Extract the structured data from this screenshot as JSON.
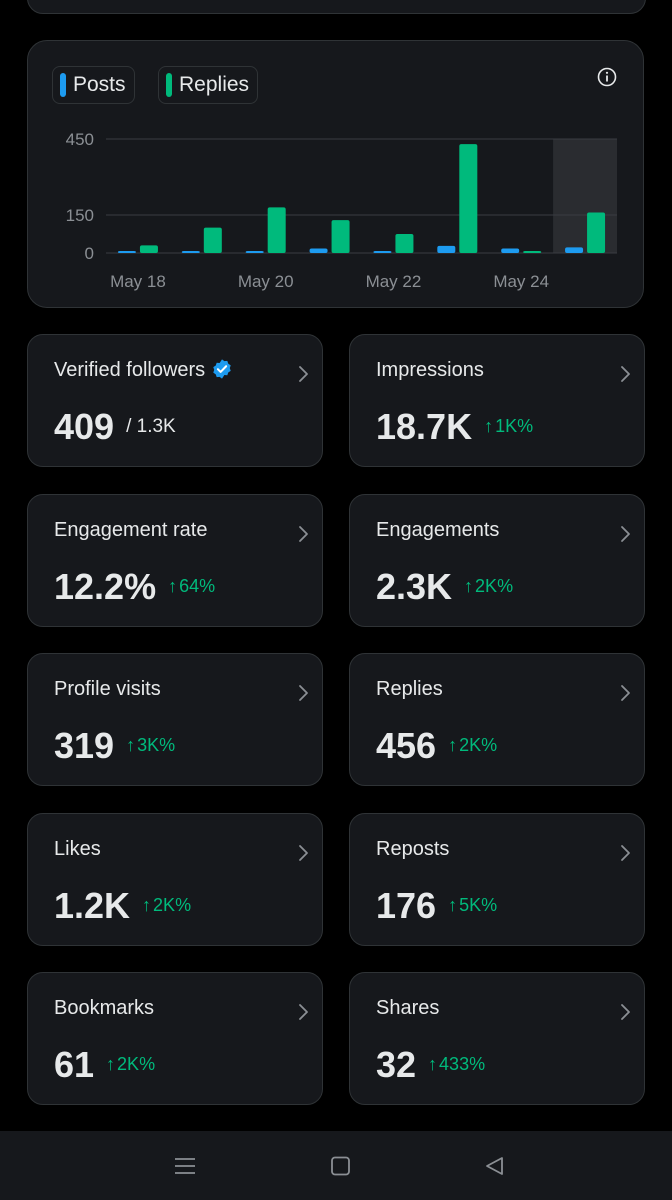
{
  "chart": {
    "legend": [
      {
        "label": "Posts",
        "color": "#1d9bf0"
      },
      {
        "label": "Replies",
        "color": "#00ba7c"
      }
    ],
    "info_icon": "info-icon"
  },
  "chart_data": {
    "type": "bar",
    "x_tick_labels": [
      "May 18",
      "May 20",
      "May 22",
      "May 24"
    ],
    "y_ticks": [
      0,
      150,
      450
    ],
    "ylim": [
      0,
      450
    ],
    "grid": true,
    "legend_position": "top-left",
    "highlighted_day_index": 7,
    "series": [
      {
        "name": "Posts",
        "color": "#1d9bf0",
        "values": [
          4,
          4,
          8,
          18,
          2,
          28,
          18,
          22
        ]
      },
      {
        "name": "Replies",
        "color": "#00ba7c",
        "values": [
          30,
          100,
          180,
          130,
          75,
          430,
          0,
          160
        ]
      }
    ]
  },
  "stats": [
    {
      "label": "Verified followers",
      "value": "409",
      "sub": "/ 1.3K",
      "verified": true
    },
    {
      "label": "Impressions",
      "value": "18.7K",
      "change": "1K%"
    },
    {
      "label": "Engagement rate",
      "value": "12.2%",
      "change": "64%"
    },
    {
      "label": "Engagements",
      "value": "2.3K",
      "change": "2K%"
    },
    {
      "label": "Profile visits",
      "value": "319",
      "change": "3K%"
    },
    {
      "label": "Replies",
      "value": "456",
      "change": "2K%"
    },
    {
      "label": "Likes",
      "value": "1.2K",
      "change": "2K%"
    },
    {
      "label": "Reposts",
      "value": "176",
      "change": "5K%"
    },
    {
      "label": "Bookmarks",
      "value": "61",
      "change": "2K%"
    },
    {
      "label": "Shares",
      "value": "32",
      "change": "433%"
    }
  ],
  "change_arrow": "↑",
  "colors": {
    "accent_green": "#00ba7c",
    "accent_blue": "#1d9bf0",
    "card_bg": "#16181c",
    "border": "#2f3336"
  },
  "navbar": {
    "icons": [
      "menu-icon",
      "home-square-icon",
      "back-triangle-icon"
    ]
  }
}
